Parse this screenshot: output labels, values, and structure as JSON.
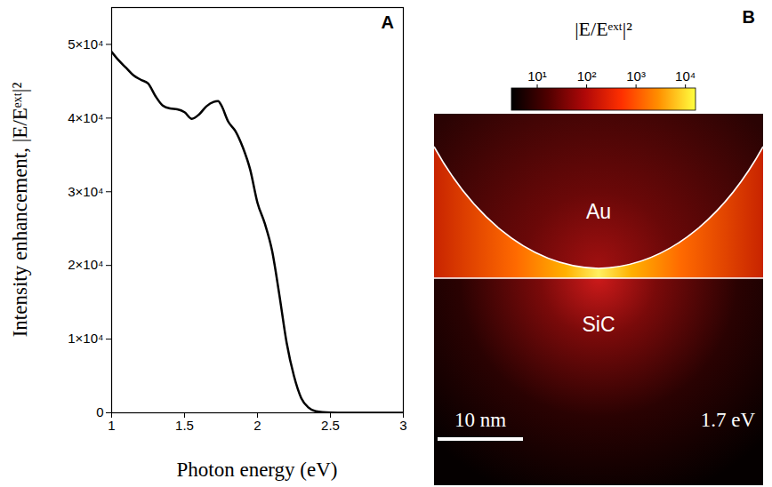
{
  "chart_data": [
    {
      "type": "line",
      "panel": "A",
      "xlabel": "Photon energy (eV)",
      "ylabel": "Intensity enhancement, |E/Eᵉˣᵗ|²",
      "x": [
        1.0,
        1.05,
        1.1,
        1.15,
        1.2,
        1.25,
        1.3,
        1.35,
        1.4,
        1.45,
        1.5,
        1.55,
        1.6,
        1.65,
        1.7,
        1.73,
        1.75,
        1.8,
        1.85,
        1.9,
        1.95,
        2.0,
        2.05,
        2.1,
        2.15,
        2.2,
        2.25,
        2.3,
        2.35,
        2.4,
        2.5,
        2.6,
        3.0
      ],
      "values": [
        49000,
        47800,
        46800,
        45800,
        45200,
        44700,
        43000,
        41700,
        41300,
        41200,
        40800,
        39900,
        40500,
        41600,
        42200,
        42300,
        41800,
        39500,
        38200,
        36000,
        33000,
        28500,
        25700,
        22000,
        16000,
        9500,
        5000,
        2000,
        700,
        200,
        30,
        0,
        0
      ],
      "color": "#000000",
      "xlim": [
        1,
        3
      ],
      "xticks": [
        1,
        1.5,
        2,
        2.5,
        3
      ],
      "ylim": [
        0,
        55000
      ],
      "yticks": [
        0,
        {
          "value": 10000,
          "label": "1×10⁴"
        },
        {
          "value": 20000,
          "label": "2×10⁴"
        },
        {
          "value": 30000,
          "label": "3×10⁴"
        },
        {
          "value": 40000,
          "label": "4×10⁴"
        },
        {
          "value": 50000,
          "label": "5×10⁴"
        }
      ],
      "grid": false
    },
    {
      "type": "field_map",
      "panel": "B",
      "colorbar": {
        "label": "|E/Eᵉˣᵗ|²",
        "range": [
          3,
          16000
        ],
        "ticks": [
          {
            "value": 10,
            "label": "10¹"
          },
          {
            "value": 100,
            "label": "10²"
          },
          {
            "value": 1000,
            "label": "10³"
          },
          {
            "value": 10000,
            "label": "10⁴"
          }
        ],
        "colors": [
          "#000000",
          "#500000",
          "#b00808",
          "#ff3000",
          "#ff9000",
          "#ffff40"
        ]
      },
      "log": true,
      "annotations": [
        "Au",
        "SiC",
        "10 nm",
        "1.7 eV"
      ]
    }
  ]
}
